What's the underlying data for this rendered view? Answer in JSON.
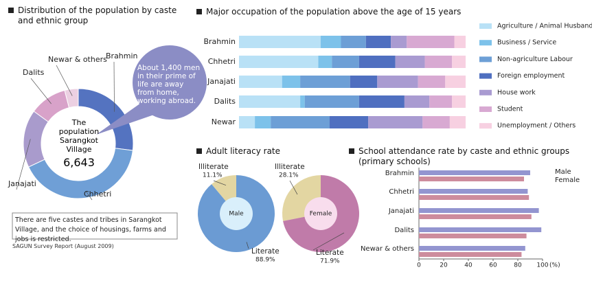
{
  "chart_data": [
    {
      "type": "donut",
      "title": "Distribution of the population by caste and ethnic group",
      "categories": [
        "Brahmin",
        "Chhetri",
        "Janajati",
        "Dalits",
        "Newar & others"
      ],
      "values": [
        27,
        41,
        17,
        11,
        4
      ],
      "colors": [
        "#5473c0",
        "#6f9fd6",
        "#a99bcc",
        "#d8a2c9",
        "#ecd0e2"
      ],
      "center_lines": [
        "The population",
        "Sarangkot Village"
      ],
      "total": {
        "value": 6643,
        "label": "6,643"
      },
      "annotation": "About 1,400 men in their prime of life are away from home, working abroad."
    },
    {
      "type": "bar",
      "horizontal": true,
      "stacked": true,
      "title": "Major occupation of the population above the age of 15 years",
      "categories": [
        "Brahmin",
        "Chhetri",
        "Janajati",
        "Dalits",
        "Newar"
      ],
      "series": [
        {
          "name": "Agriculture / Animal Husbandry",
          "color": "#b9e1f6",
          "values": [
            36,
            35,
            19,
            27,
            7
          ]
        },
        {
          "name": "Business / Service",
          "color": "#7dc2ea",
          "values": [
            9,
            6,
            8,
            2,
            7
          ]
        },
        {
          "name": "Non-agriculture Labour",
          "color": "#6d9fd6",
          "values": [
            11,
            12,
            22,
            24,
            26
          ]
        },
        {
          "name": "Foreign employment",
          "color": "#4f6fc0",
          "values": [
            11,
            16,
            12,
            20,
            17
          ]
        },
        {
          "name": "House work",
          "color": "#a99bd1",
          "values": [
            7,
            13,
            18,
            11,
            24
          ]
        },
        {
          "name": "Student",
          "color": "#d8a9d2",
          "values": [
            21,
            12,
            12,
            10,
            12
          ]
        },
        {
          "name": "Unemployment / Others",
          "color": "#f7d0e1",
          "values": [
            5,
            6,
            9,
            6,
            7
          ]
        }
      ]
    },
    {
      "type": "pie",
      "title": "Adult literacy rate",
      "categories": [
        "Illiterate",
        "Literate"
      ],
      "series": [
        {
          "name": "Male",
          "colors": [
            "#e3d6a2",
            "#6b9bd3"
          ],
          "center_color": "#d9effb",
          "values": [
            11.1,
            88.9
          ],
          "value_labels": [
            "11.1%",
            "88.9%"
          ]
        },
        {
          "name": "Female",
          "colors": [
            "#e3d6a2",
            "#c07ba9"
          ],
          "center_color": "#f8dded",
          "values": [
            28.1,
            71.9
          ],
          "value_labels": [
            "28.1%",
            "71.9%"
          ]
        }
      ]
    },
    {
      "type": "bar",
      "horizontal": true,
      "title": "School attendance rate by caste and ethnic groups (primary schools)",
      "categories": [
        "Brahmin",
        "Chhetri",
        "Janajati",
        "Dalits",
        "Newar & others"
      ],
      "series": [
        {
          "name": "Male",
          "color": "#9395d0",
          "values": [
            90,
            88,
            97,
            99,
            86
          ]
        },
        {
          "name": "Female",
          "color": "#cd8c9d",
          "values": [
            85,
            89,
            91,
            87,
            83
          ]
        }
      ],
      "xlim": [
        0,
        100
      ],
      "xticks": [
        0,
        20,
        40,
        60,
        80,
        100
      ],
      "x_unit": "(%)"
    }
  ],
  "note": "There are five castes and tribes in Sarangkot Village, and the choice of housings, farms and jobs is restricted.",
  "source": "SAGUN Survey Report (August 2009)"
}
